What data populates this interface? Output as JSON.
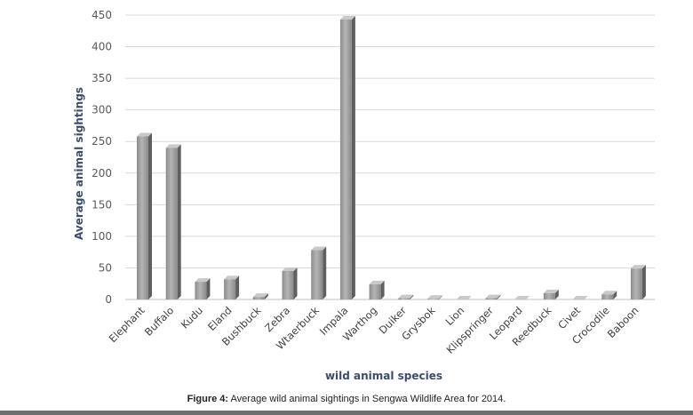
{
  "chart_data": {
    "type": "bar",
    "categories": [
      "Elephant",
      "Buffalo",
      "Kudu",
      "Eland",
      "Bushbuck",
      "Zebra",
      "Wtaerbuck",
      "Impala",
      "Warthog",
      "Duiker",
      "Grysbok",
      "Lion",
      "Klipspringer",
      "Leopard",
      "Reedbuck",
      "Civet",
      "Crocodile",
      "Baboon"
    ],
    "values": [
      258,
      240,
      28,
      32,
      4,
      45,
      78,
      443,
      24,
      2,
      1,
      0,
      2,
      0,
      10,
      0,
      8,
      49
    ],
    "xlabel": "wild animal species",
    "ylabel": "Average animal sightings",
    "ylim": [
      0,
      450
    ],
    "yticks": [
      0,
      50,
      100,
      150,
      200,
      250,
      300,
      350,
      400,
      450
    ],
    "grid": true,
    "legend": "none",
    "bar_color": "#9a9a9a"
  },
  "caption": {
    "label": "Figure 4:",
    "text": " Average wild animal sightings in Sengwa Wildlife Area for 2014."
  }
}
